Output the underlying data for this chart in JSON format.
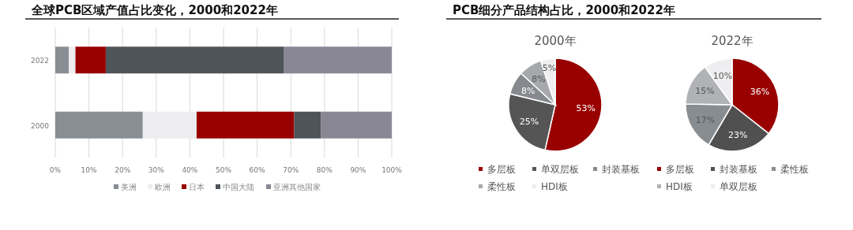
{
  "chart_data": [
    {
      "type": "bar",
      "title": "全球PCB区域产值占比变化，2000和2022年",
      "orientation": "horizontal",
      "stacked": true,
      "categories": [
        "2022",
        "2000"
      ],
      "xlim": [
        0,
        100
      ],
      "xticks": [
        {
          "value": 0,
          "label": "0%"
        },
        {
          "value": 10,
          "label": "10%"
        },
        {
          "value": 20,
          "label": "20%"
        },
        {
          "value": 30,
          "label": "30%"
        },
        {
          "value": 40,
          "label": "40%"
        },
        {
          "value": 50,
          "label": "50%"
        },
        {
          "value": 60,
          "label": "60%"
        },
        {
          "value": 70,
          "label": "70%"
        },
        {
          "value": 80,
          "label": "80%"
        },
        {
          "value": 90,
          "label": "90%"
        },
        {
          "value": 100,
          "label": "100%"
        }
      ],
      "grid": "x",
      "legend": "bottom",
      "series": [
        {
          "name": "美洲",
          "color": "#888e94",
          "values": [
            4,
            26
          ]
        },
        {
          "name": "欧洲",
          "color": "#ededef",
          "values": [
            2,
            16
          ]
        },
        {
          "name": "日本",
          "color": "#990000",
          "values": [
            9,
            29
          ]
        },
        {
          "name": "中国大陆",
          "color": "#4f5459",
          "values": [
            53,
            8
          ]
        },
        {
          "name": "亚洲其他国家",
          "color": "#8a8794",
          "values": [
            32,
            21
          ]
        }
      ]
    },
    {
      "type": "pie",
      "title": "2000年",
      "annotations": [
        "PCB细分产品结构占比，2000和2022年"
      ],
      "categories": [
        "多层板",
        "单双层板",
        "封装基板",
        "柔性板",
        "HDI板"
      ],
      "values": [
        53,
        25,
        8,
        8,
        5
      ],
      "value_labels": [
        "53%",
        "25%",
        "8%",
        "8%",
        "5%"
      ],
      "colors": [
        "#990000",
        "#555555",
        "#86898e",
        "#a6a8ab",
        "#eeeeee"
      ],
      "legend": "bottom"
    },
    {
      "type": "pie",
      "title": "2022年",
      "categories": [
        "多层板",
        "封装基板",
        "柔性板",
        "HDI板",
        "单双层板"
      ],
      "values": [
        36,
        23,
        17,
        15,
        10
      ],
      "value_labels": [
        "36%",
        "23%",
        "17%",
        "15%",
        "10%"
      ],
      "colors": [
        "#990000",
        "#505050",
        "#888d92",
        "#b0b2b6",
        "#eeeef0"
      ],
      "legend": "bottom"
    }
  ]
}
